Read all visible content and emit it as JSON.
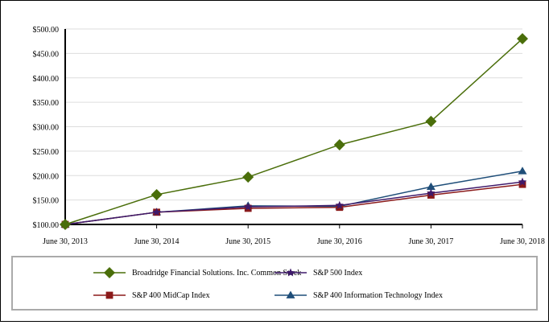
{
  "chart_data": {
    "type": "line",
    "categories": [
      "June 30, 2013",
      "June 30, 2014",
      "June 30, 2015",
      "June 30, 2016",
      "June 30, 2017",
      "June 30, 2018"
    ],
    "ylim": [
      100,
      500
    ],
    "yticks": [
      "$100.00",
      "$150.00",
      "$200.00",
      "$250.00",
      "$300.00",
      "$350.00",
      "$400.00",
      "$450.00",
      "$500.00"
    ],
    "ytick_values": [
      100,
      150,
      200,
      250,
      300,
      350,
      400,
      450,
      500
    ],
    "grid": true,
    "legend_position": "bottom",
    "series": [
      {
        "name": "Broadridge Financial Solutions. Inc. Common Stock",
        "color": "#4a6e0a",
        "marker": "diamond",
        "values": [
          100,
          161,
          197,
          263,
          311,
          480
        ]
      },
      {
        "name": "S&P 500 Index",
        "color": "#3f1a6b",
        "marker": "star",
        "values": [
          100,
          125,
          136,
          139,
          164,
          187
        ]
      },
      {
        "name": "S&P 400 MidCap Index",
        "color": "#8b1a1a",
        "marker": "square",
        "values": [
          100,
          125,
          133,
          135,
          160,
          182
        ]
      },
      {
        "name": "S&P 400 Information Technology Index",
        "color": "#1f4e79",
        "marker": "triangle",
        "values": [
          100,
          125,
          138,
          137,
          177,
          209
        ]
      }
    ]
  }
}
